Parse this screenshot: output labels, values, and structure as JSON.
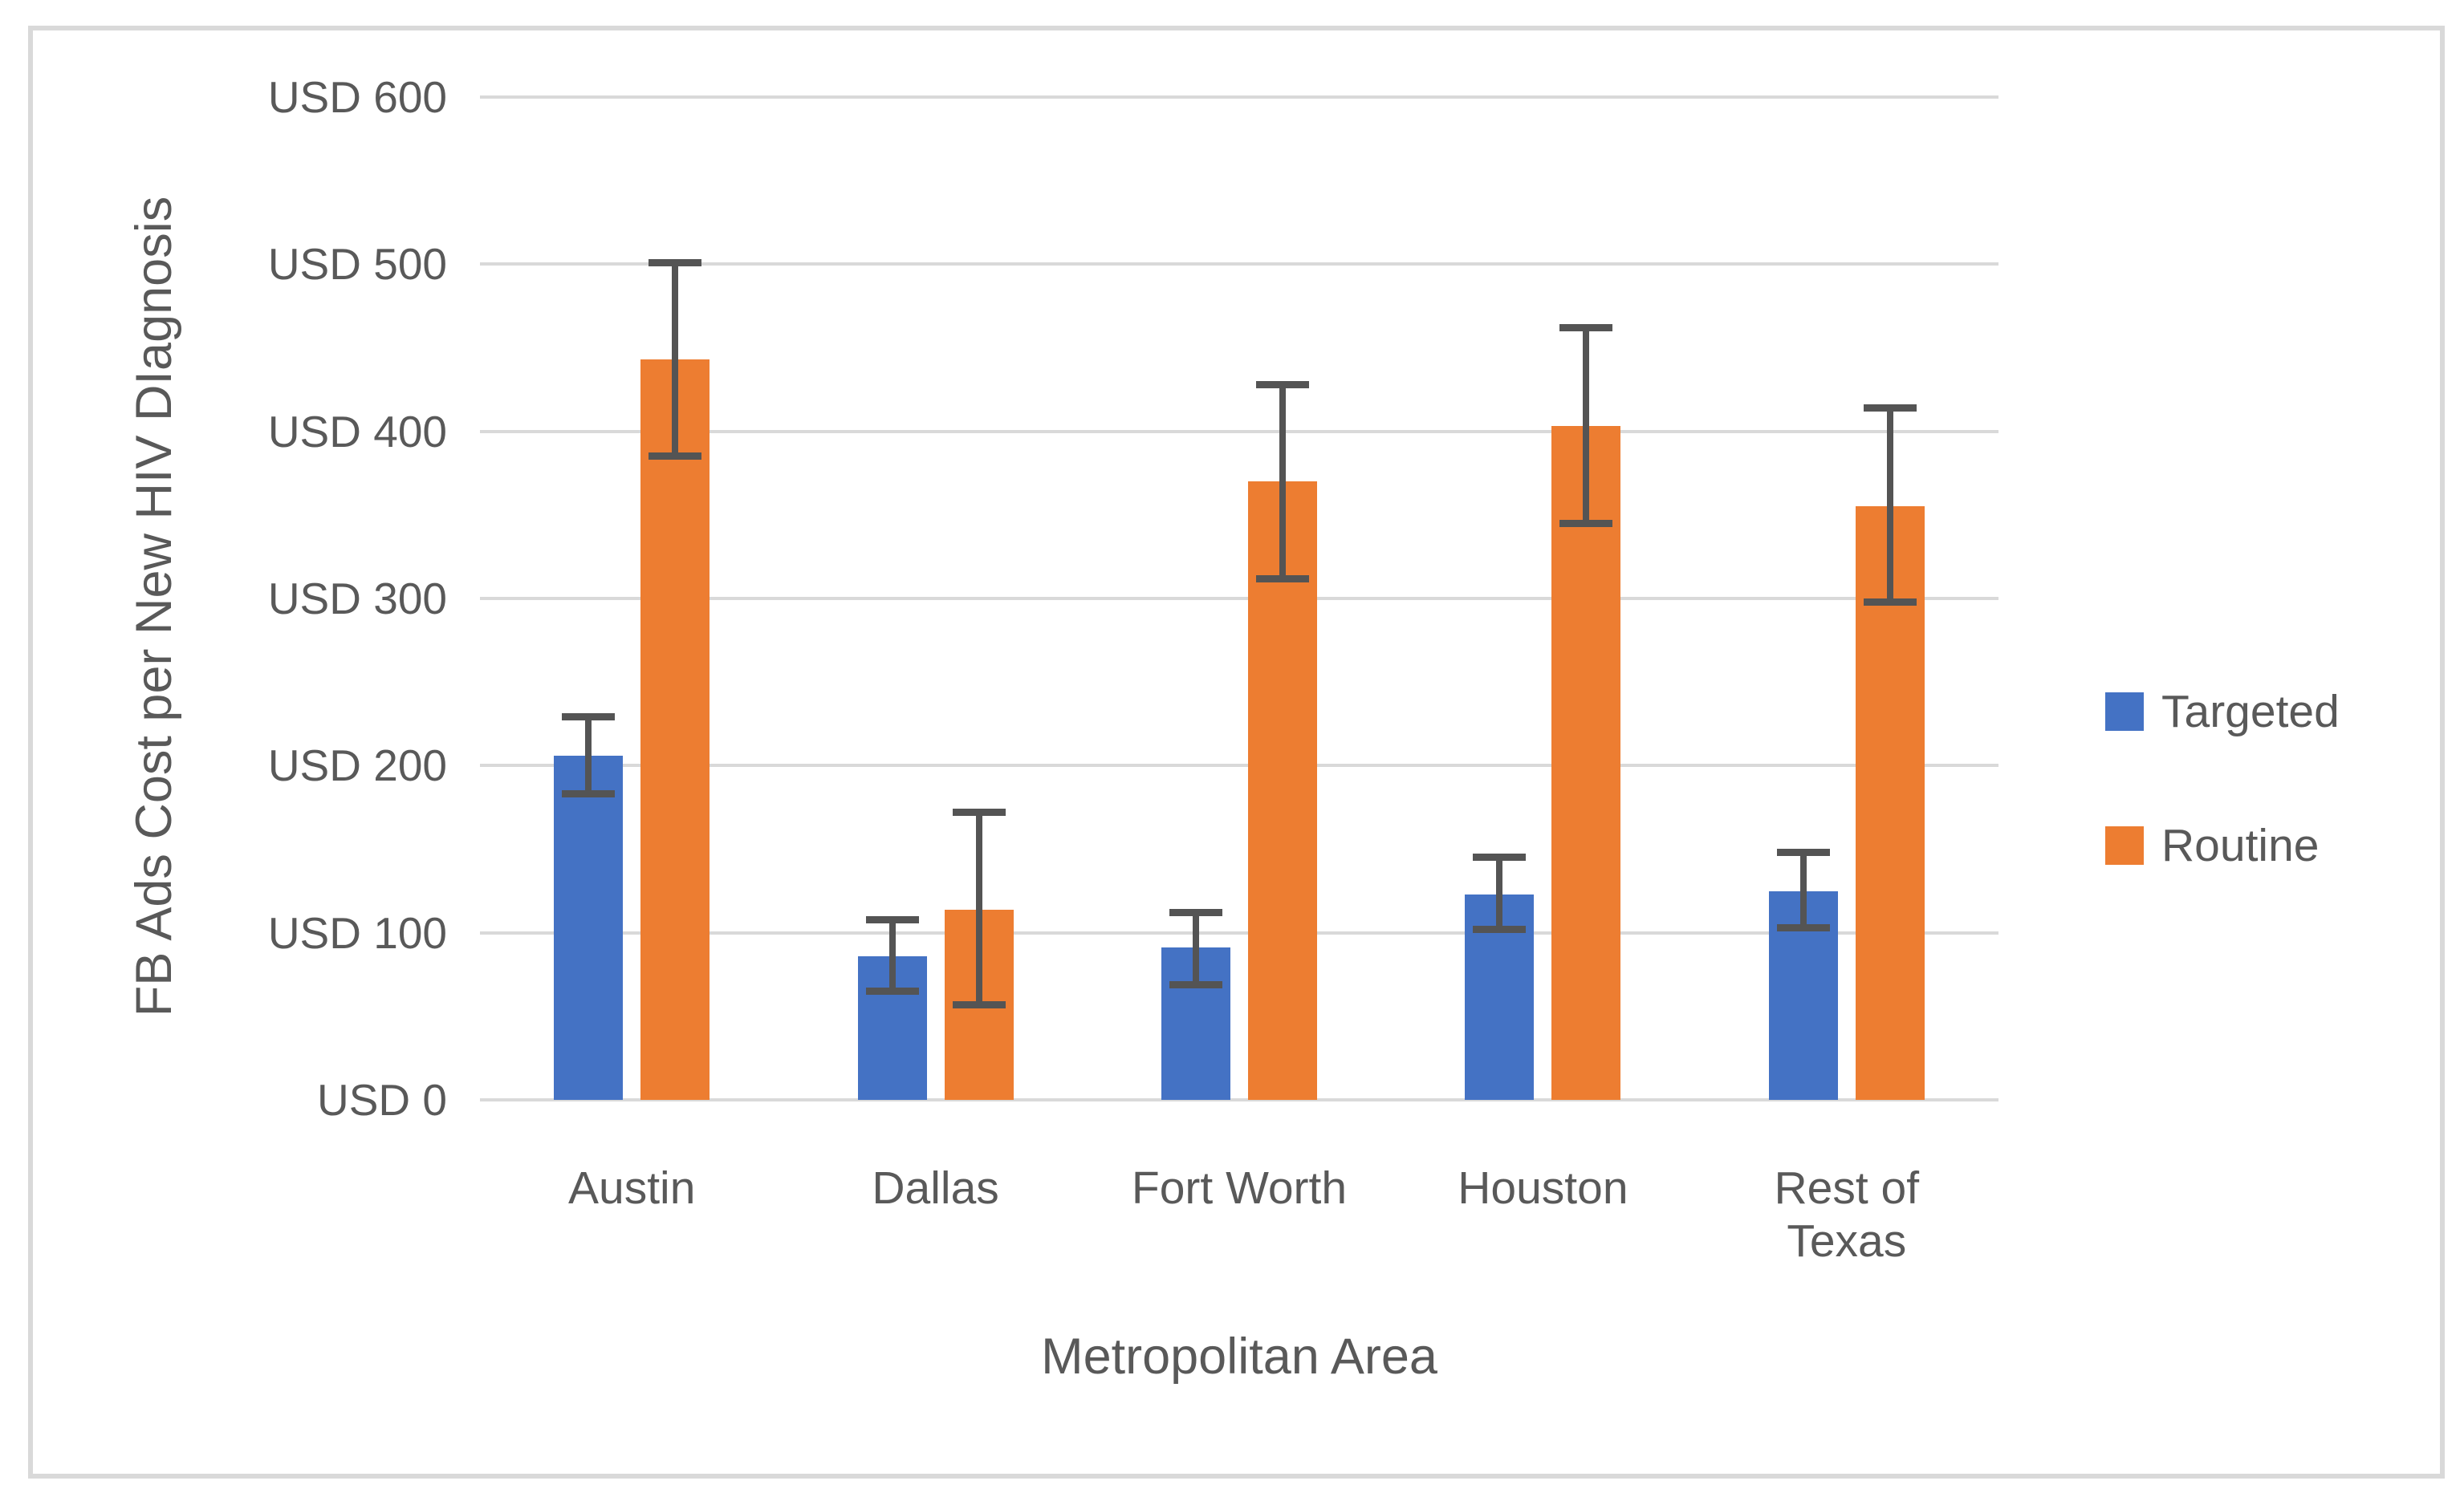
{
  "chart_data": {
    "type": "bar",
    "title": "",
    "xlabel": "Metropolitan Area",
    "ylabel": "FB Ads Cost per New HIV DIagnosis",
    "categories": [
      "Austin",
      "Dallas",
      "Fort Worth",
      "Houston",
      "Rest of Texas"
    ],
    "series": [
      {
        "name": "Targeted",
        "color": "#4472C4",
        "values": [
          206,
          86,
          91,
          123,
          125
        ],
        "error_low": [
          183,
          65,
          69,
          102,
          103
        ],
        "error_high": [
          229,
          108,
          112,
          145,
          148
        ]
      },
      {
        "name": "Routine",
        "color": "#ED7D31",
        "values": [
          443,
          114,
          370,
          403,
          355
        ],
        "error_low": [
          385,
          57,
          312,
          345,
          298
        ],
        "error_high": [
          501,
          172,
          428,
          462,
          414
        ]
      }
    ],
    "ylim": [
      0,
      600
    ],
    "ytick_step": 100,
    "yticks": [
      {
        "label": "USD 600",
        "value": 600
      },
      {
        "label": "USD 500",
        "value": 500
      },
      {
        "label": "USD 400",
        "value": 400
      },
      {
        "label": "USD 300",
        "value": 300
      },
      {
        "label": "USD 200",
        "value": 200
      },
      {
        "label": "USD 100",
        "value": 100
      },
      {
        "label": "USD 0",
        "value": 0
      }
    ],
    "grid": "horizontal",
    "legend_position": "right",
    "error_bars": true
  },
  "colors": {
    "targeted": "#4472C4",
    "routine": "#ED7D31",
    "gridline": "#D9D9D9",
    "chart_border": "#D9D9D9",
    "error_bar": "#545454",
    "text": "#595959",
    "background": "#FFFFFF"
  },
  "legend": {
    "items": [
      {
        "label": "Targeted",
        "color": "#4472C4"
      },
      {
        "label": "Routine",
        "color": "#ED7D31"
      }
    ]
  }
}
